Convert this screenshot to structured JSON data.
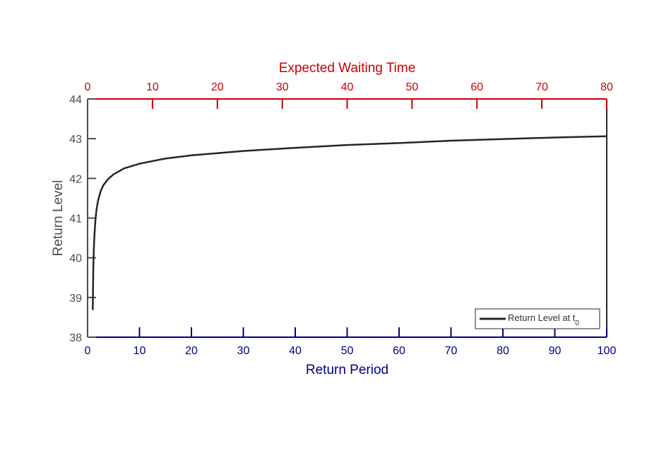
{
  "chart_data": {
    "type": "line",
    "xlabel": "Return Period",
    "x2label": "Expected Waiting Time",
    "ylabel": "Return Level",
    "xlim": [
      0,
      100
    ],
    "x2lim": [
      0,
      80
    ],
    "ylim": [
      38,
      44
    ],
    "xticks": [
      0,
      10,
      20,
      30,
      40,
      50,
      60,
      70,
      80,
      90,
      100
    ],
    "x2ticks": [
      0,
      10,
      20,
      30,
      40,
      50,
      60,
      70,
      80
    ],
    "yticks": [
      38,
      39,
      40,
      41,
      42,
      43,
      44
    ],
    "grid": false,
    "legend_position": "bottom-right",
    "colors": {
      "bottom_axis": "#000080",
      "top_axis": "#cc0000",
      "left_axis": "#4d4d4d",
      "frame": "#262626",
      "line": "#262626"
    },
    "series": [
      {
        "name": "Return Level at t",
        "name_subscript": "0",
        "x": [
          1.0,
          1.1,
          1.2,
          1.3,
          1.5,
          1.7,
          2,
          2.5,
          3,
          4,
          5,
          7,
          10,
          15,
          20,
          30,
          40,
          50,
          60,
          70,
          80,
          90,
          100
        ],
        "y": [
          38.7,
          39.72,
          40.2,
          40.52,
          40.94,
          41.19,
          41.43,
          41.67,
          41.82,
          41.99,
          42.1,
          42.25,
          42.37,
          42.5,
          42.58,
          42.69,
          42.77,
          42.84,
          42.89,
          42.95,
          42.99,
          43.03,
          43.06
        ]
      }
    ]
  }
}
